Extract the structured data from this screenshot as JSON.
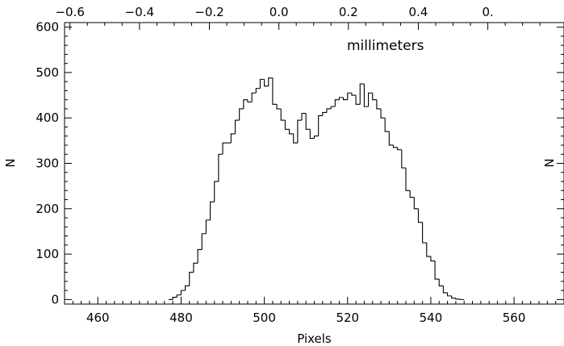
{
  "chart_data": {
    "type": "histogram",
    "xlabel": "Pixels",
    "ylabel": "N",
    "right_ylabel": "N",
    "annotation": "millimeters",
    "xlim": [
      452,
      572
    ],
    "ylim": [
      -10,
      610
    ],
    "xticks": [
      460,
      480,
      500,
      520,
      540,
      560
    ],
    "yticks": [
      0,
      100,
      200,
      300,
      400,
      500,
      600
    ],
    "top_axis": {
      "unit": "millimeters",
      "ticks": [
        {
          "label": "−0.6",
          "x": 453.3
        },
        {
          "label": "−0.4",
          "x": 470.0
        },
        {
          "label": "−0.2",
          "x": 486.8
        },
        {
          "label": "0.0",
          "x": 503.5
        },
        {
          "label": "0.2",
          "x": 520.2
        },
        {
          "label": "0.4",
          "x": 537.0
        },
        {
          "label": "0.",
          "x": 553.7
        }
      ]
    },
    "bin_width": 1,
    "bins_start": 477,
    "values": [
      0,
      5,
      10,
      20,
      30,
      60,
      80,
      110,
      145,
      175,
      215,
      260,
      320,
      345,
      345,
      365,
      395,
      420,
      440,
      435,
      455,
      465,
      485,
      470,
      488,
      430,
      420,
      395,
      375,
      365,
      345,
      395,
      410,
      375,
      355,
      360,
      405,
      412,
      420,
      425,
      440,
      445,
      440,
      455,
      450,
      430,
      475,
      425,
      455,
      440,
      420,
      400,
      370,
      340,
      335,
      330,
      290,
      240,
      225,
      200,
      170,
      125,
      95,
      85,
      45,
      30,
      15,
      8,
      3,
      1,
      0
    ]
  }
}
